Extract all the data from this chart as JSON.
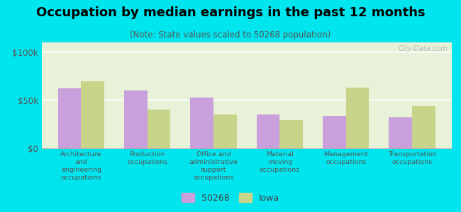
{
  "title": "Occupation by median earnings in the past 12 months",
  "subtitle": "(Note: State values scaled to 50268 population)",
  "categories": [
    "Architecture\nand\nengineering\noccupations",
    "Production\noccupations",
    "Office and\nadministrative\nsupport\noccupations",
    "Material\nmoving\noccupations",
    "Management\noccupations",
    "Transportation\noccupations"
  ],
  "values_50268": [
    62000,
    60000,
    53000,
    35000,
    34000,
    32000
  ],
  "values_iowa": [
    70000,
    40000,
    35000,
    29000,
    63000,
    44000
  ],
  "color_50268": "#c9a0dc",
  "color_iowa": "#c8d48a",
  "background_color": "#00e5ee",
  "plot_bg": "#e8f2d8",
  "ylabel_ticks": [
    0,
    50000,
    100000
  ],
  "ylabel_labels": [
    "$0",
    "$50k",
    "$100k"
  ],
  "ylim": [
    0,
    110000
  ],
  "watermark": "City-Data.com",
  "legend_label_1": "50268",
  "legend_label_2": "Iowa",
  "title_fontsize": 13,
  "subtitle_fontsize": 8.5
}
